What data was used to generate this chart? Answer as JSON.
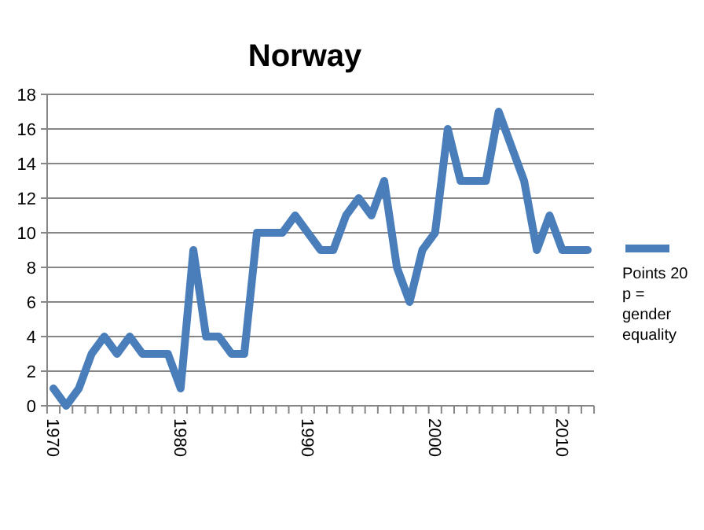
{
  "chart_data": {
    "type": "line",
    "title": "Norway",
    "categories": [
      "1970",
      null,
      null,
      null,
      null,
      null,
      null,
      null,
      null,
      null,
      "1980",
      null,
      null,
      null,
      null,
      null,
      null,
      null,
      null,
      null,
      "1990",
      null,
      null,
      null,
      null,
      null,
      null,
      null,
      null,
      null,
      "2000",
      null,
      null,
      null,
      null,
      null,
      null,
      null,
      null,
      null,
      "2010",
      null,
      null
    ],
    "series": [
      {
        "name": "Points 20 p = gender equality",
        "color": "#4a7ebb",
        "values": [
          1,
          0,
          1,
          3,
          4,
          3,
          4,
          3,
          3,
          3,
          1,
          9,
          4,
          4,
          3,
          3,
          10,
          10,
          10,
          11,
          10,
          9,
          9,
          11,
          12,
          11,
          13,
          8,
          6,
          9,
          10,
          16,
          13,
          13,
          13,
          17,
          15,
          13,
          9,
          11,
          9,
          9,
          9
        ]
      }
    ],
    "ylim": [
      0,
      18
    ],
    "yticks": [
      0,
      2,
      4,
      6,
      8,
      10,
      12,
      14,
      16,
      18
    ],
    "grid": "y",
    "legend": "right",
    "marker": "none",
    "line_style": "solid"
  }
}
